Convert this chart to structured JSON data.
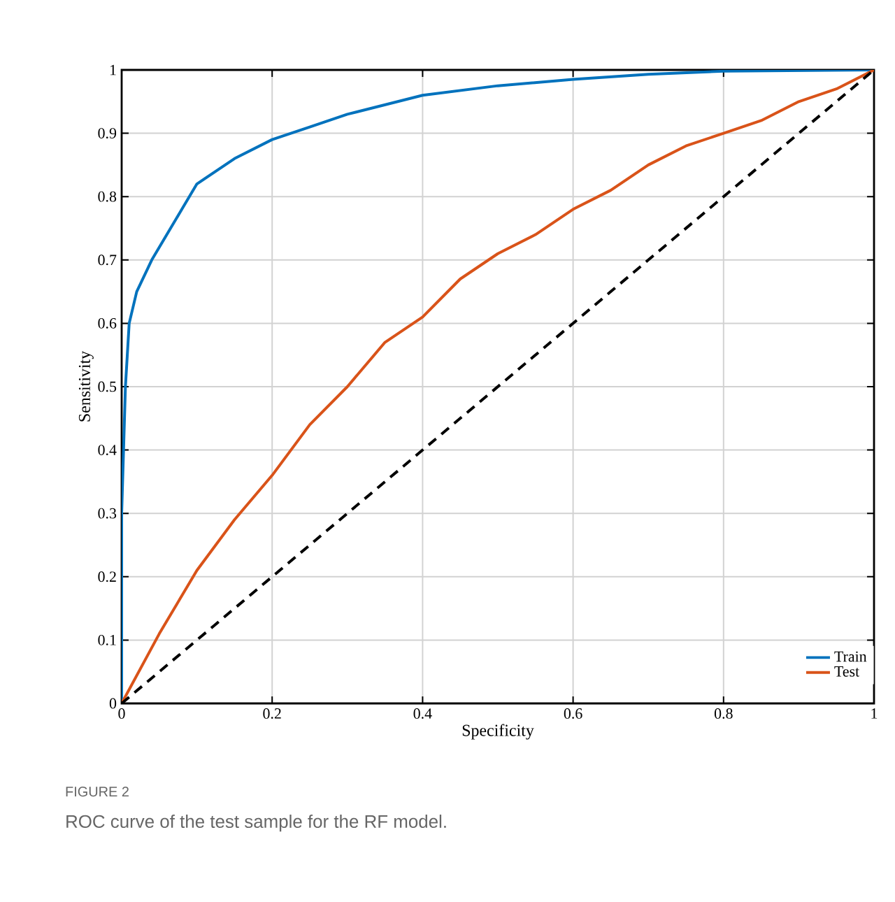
{
  "chart_data": {
    "type": "line",
    "xlabel": "Specificity",
    "ylabel": "Sensitivity",
    "xlim": [
      0,
      1
    ],
    "ylim": [
      0,
      1
    ],
    "xticks": [
      0,
      0.2,
      0.4,
      0.6,
      0.8,
      1
    ],
    "yticks": [
      0,
      0.1,
      0.2,
      0.3,
      0.4,
      0.5,
      0.6,
      0.7,
      0.8,
      0.9,
      1
    ],
    "grid": true,
    "legend": "bottom right",
    "series": [
      {
        "name": "Train",
        "color": "#0072bd",
        "x": [
          0,
          0,
          0.005,
          0.01,
          0.02,
          0.04,
          0.06,
          0.08,
          0.1,
          0.15,
          0.2,
          0.25,
          0.3,
          0.4,
          0.5,
          0.6,
          0.7,
          0.8,
          1
        ],
        "values": [
          0,
          0.3,
          0.5,
          0.6,
          0.65,
          0.7,
          0.74,
          0.78,
          0.82,
          0.86,
          0.89,
          0.91,
          0.93,
          0.96,
          0.975,
          0.985,
          0.993,
          0.998,
          1
        ]
      },
      {
        "name": "Test",
        "color": "#d95319",
        "x": [
          0,
          0.05,
          0.1,
          0.15,
          0.2,
          0.25,
          0.3,
          0.35,
          0.4,
          0.45,
          0.5,
          0.55,
          0.6,
          0.65,
          0.7,
          0.75,
          0.8,
          0.85,
          0.9,
          0.95,
          1
        ],
        "values": [
          0,
          0.11,
          0.21,
          0.29,
          0.36,
          0.44,
          0.5,
          0.57,
          0.61,
          0.67,
          0.71,
          0.74,
          0.78,
          0.81,
          0.85,
          0.88,
          0.9,
          0.92,
          0.95,
          0.97,
          1
        ]
      },
      {
        "color": "#000000",
        "line_style": "dashed",
        "x": [
          0,
          1
        ],
        "values": [
          0,
          1
        ]
      }
    ],
    "annotations": [
      "FIGURE 2",
      "ROC curve of the test sample for the RF model."
    ]
  }
}
